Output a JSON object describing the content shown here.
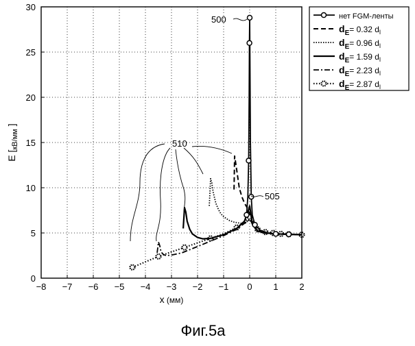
{
  "figure": {
    "caption": "Фиг.5a"
  },
  "chart_data": {
    "type": "line",
    "title": "",
    "xlabel": "x (мм)",
    "ylabel": "E [кВ/мм]",
    "xlim": [
      -8,
      2
    ],
    "ylim": [
      0,
      30
    ],
    "xticks": [
      -8,
      -7,
      -6,
      -5,
      -4,
      -3,
      -2,
      -1,
      0,
      1,
      2
    ],
    "yticks": [
      0,
      5,
      10,
      15,
      20,
      25,
      30
    ],
    "grid": true,
    "legend_position": "right",
    "series": [
      {
        "name": "нет FGM-ленты",
        "style": "solid-circle",
        "x": [
          -0.12,
          -0.07,
          -0.04,
          -0.02,
          -0.01,
          0.0,
          0.01,
          0.03,
          0.06,
          0.1,
          0.2,
          0.4,
          0.7,
          1.0,
          1.5,
          2.0
        ],
        "y": [
          7.0,
          9.0,
          13.0,
          20.0,
          26.0,
          28.8,
          24.0,
          15.0,
          9.0,
          7.0,
          5.9,
          5.3,
          5.0,
          4.9,
          4.85,
          4.8
        ]
      },
      {
        "name": "dE= 0.32 dl",
        "style": "dashed",
        "x": [
          -0.6,
          -0.58,
          -0.55,
          -0.5,
          -0.45,
          -0.4,
          -0.3,
          -0.2,
          -0.1,
          -0.05,
          0.0,
          0.1,
          0.3,
          0.6,
          1.0,
          2.0
        ],
        "y": [
          9.8,
          13.5,
          13.0,
          12.0,
          11.0,
          10.0,
          9.0,
          8.3,
          7.8,
          7.4,
          7.2,
          6.2,
          5.3,
          5.0,
          4.9,
          4.8
        ]
      },
      {
        "name": "dE= 0.96 dl",
        "style": "dotted",
        "x": [
          -1.55,
          -1.5,
          -1.45,
          -1.4,
          -1.3,
          -1.2,
          -1.1,
          -1.0,
          -0.8,
          -0.6,
          -0.4,
          -0.2,
          0.0,
          0.2,
          0.5,
          1.0,
          2.0
        ],
        "y": [
          8.0,
          11.0,
          10.5,
          9.5,
          8.3,
          7.6,
          7.1,
          6.8,
          6.4,
          6.2,
          6.1,
          6.0,
          6.5,
          5.5,
          5.0,
          4.9,
          4.8
        ]
      },
      {
        "name": "dE= 1.59 dl",
        "style": "solid",
        "x": [
          -2.55,
          -2.5,
          -2.45,
          -2.4,
          -2.3,
          -2.2,
          -2.0,
          -1.8,
          -1.5,
          -1.0,
          -0.5,
          -0.2,
          -0.05,
          0.0,
          0.05,
          0.1,
          0.3,
          0.6,
          1.0,
          2.0
        ],
        "y": [
          5.5,
          7.8,
          7.3,
          6.3,
          5.4,
          4.9,
          4.5,
          4.35,
          4.4,
          4.8,
          5.5,
          6.3,
          7.5,
          8.0,
          7.0,
          6.0,
          5.2,
          5.0,
          4.9,
          4.8
        ]
      },
      {
        "name": "dE= 2.23 dl",
        "style": "dashdot",
        "x": [
          -3.55,
          -3.5,
          -3.45,
          -3.4,
          -3.3,
          -3.2,
          -3.0,
          -2.6,
          -2.0,
          -1.5,
          -1.0,
          -0.5,
          0.0,
          0.3,
          0.6,
          1.0,
          2.0
        ],
        "y": [
          2.8,
          4.0,
          3.6,
          2.9,
          2.6,
          2.5,
          2.55,
          2.8,
          3.5,
          4.1,
          4.7,
          5.4,
          6.5,
          5.2,
          5.0,
          4.9,
          4.8
        ]
      },
      {
        "name": "dE= 2.87 dl",
        "style": "dotted-star",
        "x": [
          -4.5,
          -4.0,
          -3.5,
          -3.0,
          -2.5,
          -2.0,
          -1.5,
          -1.0,
          -0.5,
          -0.2,
          0.0,
          0.3,
          0.6,
          0.9,
          1.2,
          1.5,
          2.0
        ],
        "y": [
          1.2,
          1.8,
          2.4,
          2.9,
          3.4,
          3.9,
          4.4,
          4.9,
          5.6,
          6.2,
          6.8,
          5.4,
          5.1,
          5.0,
          4.9,
          4.85,
          4.8
        ]
      }
    ],
    "legend": {
      "entries": [
        {
          "text": "нет FGM-ленты"
        },
        {
          "main": "d",
          "sub": "E",
          "rest": "=  0.32 d",
          "rsub": "l"
        },
        {
          "main": "d",
          "sub": "E",
          "rest": "=  0.96 d",
          "rsub": "l"
        },
        {
          "main": "d",
          "sub": "E",
          "rest": "=  1.59 d",
          "rsub": "l"
        },
        {
          "main": "d",
          "sub": "E",
          "rest": "=  2.23 d",
          "rsub": "l"
        },
        {
          "main": "d",
          "sub": "E",
          "rest": "=  2.87 d",
          "rsub": "l"
        }
      ]
    },
    "annotations": {
      "label_500": "500",
      "label_505": "505",
      "label_510": "510"
    },
    "axis_label_parts": {
      "y_main": "E [",
      "y_unit": "кВ/мм",
      "y_end": " ]",
      "x_main": "x",
      "x_unit": " (мм)"
    }
  }
}
